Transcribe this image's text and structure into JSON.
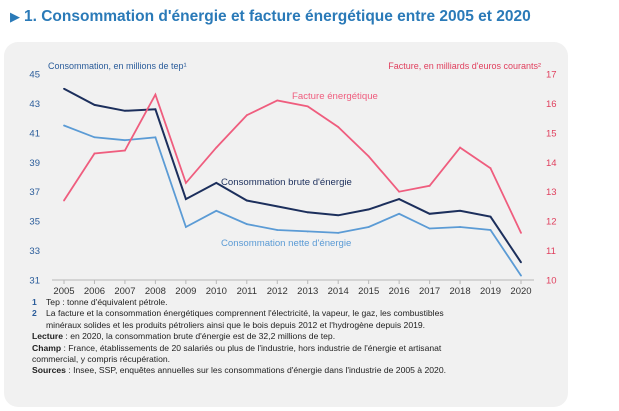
{
  "title": "1. Consommation d'énergie et facture énergétique entre 2005 et 2020",
  "colors": {
    "title": "#2a7ab8",
    "brute": "#1c2f5c",
    "nette": "#5b9bd5",
    "facture": "#ef5d7e",
    "left_axis": "#2a5c9a",
    "right_axis": "#e0405e"
  },
  "chart_data": {
    "type": "line",
    "x": [
      "2005",
      "2006",
      "2007",
      "2008",
      "2009",
      "2010",
      "2011",
      "2012",
      "2013",
      "2014",
      "2015",
      "2016",
      "2017",
      "2018",
      "2019",
      "2020"
    ],
    "left_axis": {
      "label": "Consommation, en millions de tep¹",
      "ylim": [
        31,
        45
      ],
      "ticks": [
        "31",
        "33",
        "35",
        "37",
        "39",
        "41",
        "43",
        "45"
      ]
    },
    "right_axis": {
      "label": "Facture, en milliards d'euros courants²",
      "ylim": [
        10,
        17
      ],
      "ticks": [
        "10",
        "11",
        "12",
        "13",
        "14",
        "15",
        "16",
        "17"
      ]
    },
    "series": [
      {
        "name": "Consommation brute d'énergie",
        "axis": "left",
        "values": [
          44.0,
          42.9,
          42.5,
          42.6,
          36.5,
          37.6,
          36.4,
          36.0,
          35.6,
          35.4,
          35.8,
          36.5,
          35.5,
          35.7,
          35.3,
          32.2
        ]
      },
      {
        "name": "Consommation nette d'énergie",
        "axis": "left",
        "values": [
          41.5,
          40.7,
          40.5,
          40.7,
          34.6,
          35.7,
          34.8,
          34.4,
          34.3,
          34.2,
          34.6,
          35.5,
          34.5,
          34.6,
          34.4,
          31.3
        ]
      },
      {
        "name": "Facture énergétique",
        "axis": "right",
        "values": [
          12.7,
          14.3,
          14.4,
          16.3,
          13.3,
          14.5,
          15.6,
          16.1,
          15.9,
          15.2,
          14.2,
          13.0,
          13.2,
          14.5,
          13.8,
          11.6
        ]
      }
    ],
    "grid": false
  },
  "notes": {
    "n1_num": "1",
    "n1": "Tep : tonne d'équivalent pétrole.",
    "n2_num": "2",
    "n2a": "La facture et la consommation énergétiques comprennent l'électricité, la vapeur, le gaz, les combustibles",
    "n2b": "minéraux solides et les produits pétroliers ainsi que le bois depuis 2012 et l'hydrogène depuis 2019.",
    "lecture_label": "Lecture",
    "lecture": " : en 2020, la consommation brute d'énergie est de 32,2 millions de tep.",
    "champ_label": "Champ",
    "champ_a": " : France, établissements de 20 salariés ou plus de l'industrie, hors industrie de l'énergie et artisanat",
    "champ_b": "commercial, y compris récupération.",
    "sources_label": "Sources",
    "sources": " : Insee, SSP, enquêtes annuelles sur les consommations d'énergie dans l'industrie de 2005 à 2020."
  }
}
